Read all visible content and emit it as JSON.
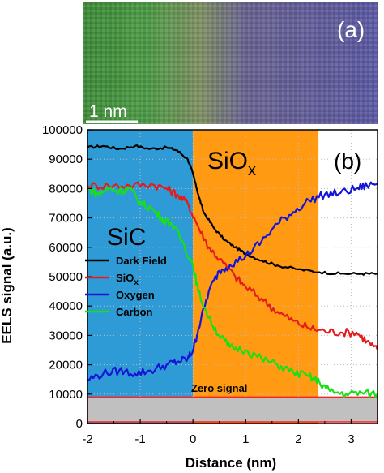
{
  "image_panel": {
    "label": "(a)",
    "scale_bar_label": "1 nm"
  },
  "chart_data": {
    "type": "line",
    "panel_label": "(b)",
    "xlabel": "Distance (nm)",
    "ylabel": "EELS signal (a.u.)",
    "xlim": [
      -2,
      3.5
    ],
    "ylim": [
      0,
      100000
    ],
    "xticks": [
      -2,
      -1,
      0,
      1,
      2,
      3
    ],
    "yticks": [
      0,
      10000,
      20000,
      30000,
      40000,
      50000,
      60000,
      70000,
      80000,
      90000,
      100000
    ],
    "grid": true,
    "legend_position": "middle-left",
    "regions": [
      {
        "label": "SiC",
        "x_start": -2,
        "x_end": 0,
        "color": "#2f9bd6"
      },
      {
        "label": "SiO",
        "subscript": "x",
        "x_start": 0,
        "x_end": 2.38,
        "color": "#ff9a12"
      }
    ],
    "zero_signal": {
      "label": "Zero signal",
      "y_min": 0,
      "y_max": 9000,
      "fill": "#c0c0c0",
      "border": "#ff2020"
    },
    "series": [
      {
        "name": "Dark Field",
        "color": "#000000",
        "x": [
          -2.0,
          -1.7,
          -1.4,
          -1.1,
          -0.8,
          -0.5,
          -0.3,
          -0.1,
          0.0,
          0.1,
          0.2,
          0.4,
          0.6,
          0.8,
          1.0,
          1.3,
          1.6,
          2.0,
          2.4,
          2.8,
          3.2,
          3.5
        ],
        "y": [
          94000,
          94500,
          93500,
          94500,
          93500,
          94000,
          93000,
          90000,
          85000,
          78000,
          72000,
          66500,
          62500,
          60000,
          57800,
          55500,
          53800,
          52500,
          51500,
          51000,
          51000,
          51000
        ]
      },
      {
        "name": "SiO",
        "name_subscript": "x",
        "color": "#e51b1b",
        "x": [
          -2.0,
          -1.6,
          -1.2,
          -0.8,
          -0.5,
          -0.3,
          -0.1,
          0.1,
          0.3,
          0.5,
          0.8,
          1.0,
          1.3,
          1.6,
          1.9,
          2.2,
          2.5,
          2.8,
          3.1,
          3.3,
          3.5
        ],
        "y": [
          81000,
          81000,
          81000,
          81500,
          80000,
          78000,
          75000,
          67000,
          60000,
          56000,
          50000,
          46500,
          42500,
          38000,
          35000,
          32500,
          31500,
          31000,
          31000,
          28000,
          25000
        ]
      },
      {
        "name": "Oxygen",
        "color": "#1515d8",
        "x": [
          -2.0,
          -1.7,
          -1.4,
          -1.1,
          -0.8,
          -0.5,
          -0.3,
          -0.1,
          0.0,
          0.1,
          0.3,
          0.5,
          0.7,
          1.0,
          1.3,
          1.6,
          1.9,
          2.2,
          2.5,
          2.8,
          3.1,
          3.3,
          3.5
        ],
        "y": [
          15000,
          17000,
          18000,
          17000,
          18000,
          20000,
          21000,
          22000,
          25000,
          32000,
          45000,
          52000,
          54000,
          57000,
          62000,
          68000,
          72000,
          76000,
          78000,
          78500,
          80000,
          81000,
          82000
        ]
      },
      {
        "name": "Carbon",
        "color": "#17e017",
        "x": [
          -2.0,
          -1.8,
          -1.6,
          -1.4,
          -1.2,
          -1.0,
          -0.8,
          -0.6,
          -0.4,
          -0.2,
          0.0,
          0.1,
          0.3,
          0.5,
          0.7,
          1.0,
          1.3,
          1.6,
          1.9,
          2.2,
          2.4,
          2.6,
          2.9,
          3.2,
          3.5
        ],
        "y": [
          80000,
          78000,
          80000,
          79000,
          80000,
          75000,
          73500,
          70000,
          68000,
          62000,
          54000,
          45000,
          36000,
          30000,
          26000,
          25000,
          22000,
          20000,
          17500,
          16000,
          14000,
          11000,
          10000,
          10500,
          10000
        ]
      }
    ]
  }
}
